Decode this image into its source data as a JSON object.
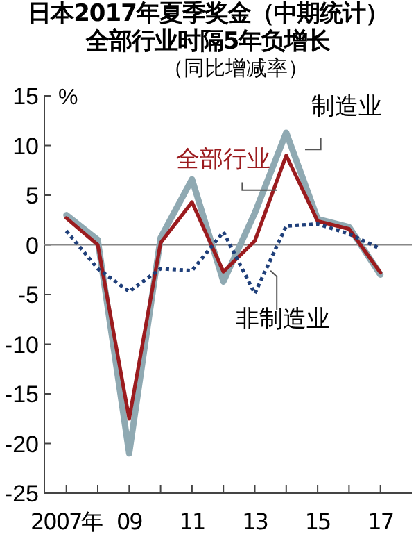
{
  "chart_data": {
    "type": "line",
    "title": "日本2017年夏季奖金（中期统计）全部行业时隔5年负增长",
    "subtitle": "（同比增减率）",
    "ylabel": "%",
    "x": [
      2007,
      2008,
      2009,
      2010,
      2011,
      2012,
      2013,
      2014,
      2015,
      2016,
      2017
    ],
    "xlim": [
      2006.3,
      2018
    ],
    "xticks": [
      {
        "value": 2007,
        "label": "2007年"
      },
      {
        "value": 2008,
        "label": null
      },
      {
        "value": 2009,
        "label": "09"
      },
      {
        "value": 2010,
        "label": null
      },
      {
        "value": 2011,
        "label": "11"
      },
      {
        "value": 2012,
        "label": null
      },
      {
        "value": 2013,
        "label": "13"
      },
      {
        "value": 2014,
        "label": null
      },
      {
        "value": 2015,
        "label": "15"
      },
      {
        "value": 2016,
        "label": null
      },
      {
        "value": 2017,
        "label": "17"
      }
    ],
    "ylim": [
      -25,
      15
    ],
    "yticks": [
      -25,
      -20,
      -15,
      -10,
      -5,
      0,
      5,
      10,
      15
    ],
    "series": [
      {
        "name": "制造业",
        "color": "#8fa9b2",
        "values": [
          3.0,
          0.5,
          -21,
          0.7,
          6.6,
          -3.7,
          3.2,
          11.3,
          2.6,
          1.8,
          -3.0
        ]
      },
      {
        "name": "全部行业",
        "color": "#9b1b1e",
        "values": [
          2.7,
          0,
          -17.5,
          0.2,
          4.3,
          -2.7,
          0.4,
          9.0,
          2.4,
          1.6,
          -2.8
        ]
      },
      {
        "name": "非制造业",
        "color": "#1f3f7a",
        "line_style": "dotted",
        "values": [
          1.4,
          -2.4,
          -4.7,
          -2.4,
          -2.6,
          1.3,
          -4.9,
          1.9,
          2.1,
          1.1,
          -0.4
        ]
      }
    ],
    "ref_lines": [
      {
        "axis": "y",
        "value": 0,
        "color": "#888888"
      }
    ],
    "legend": false,
    "grid": false,
    "marker": "none",
    "line_style": "solid"
  }
}
